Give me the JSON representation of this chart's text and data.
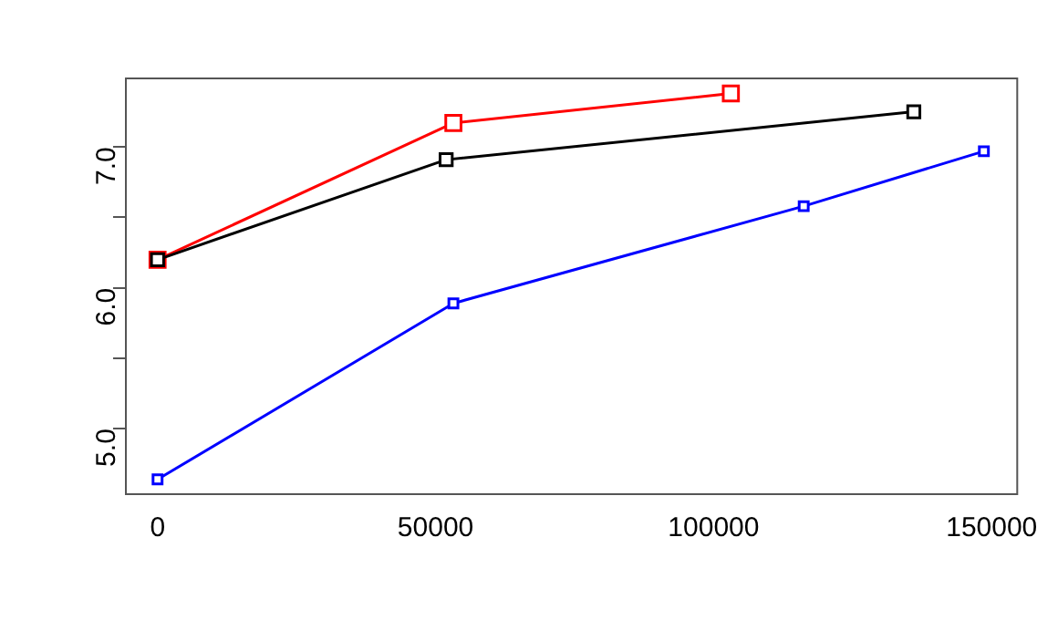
{
  "chart_data": {
    "type": "line",
    "marker": "square",
    "grid": false,
    "legend": false,
    "xlim": [
      -5700,
      154600
    ],
    "xticks": [
      0,
      50000,
      100000,
      150000
    ],
    "ylim": [
      4.535,
      7.487
    ],
    "yticks": [
      {
        "value": 5,
        "label": "5.0"
      },
      {
        "value": 5.5,
        "label": null
      },
      {
        "value": 6,
        "label": "6.0"
      },
      {
        "value": 6.5,
        "label": null
      },
      {
        "value": 7,
        "label": "7.0"
      }
    ],
    "series": [
      {
        "color": "#ff0000",
        "x": [
          0,
          53200,
          103100
        ],
        "values": [
          6.2,
          7.17,
          7.38
        ]
      },
      {
        "color": "#000000",
        "x": [
          0,
          51900,
          136000
        ],
        "values": [
          6.2,
          6.91,
          7.25
        ]
      },
      {
        "color": "#0000ff",
        "x": [
          0,
          53200,
          116200,
          148600
        ],
        "values": [
          4.64,
          5.89,
          6.58,
          6.97
        ]
      }
    ]
  }
}
